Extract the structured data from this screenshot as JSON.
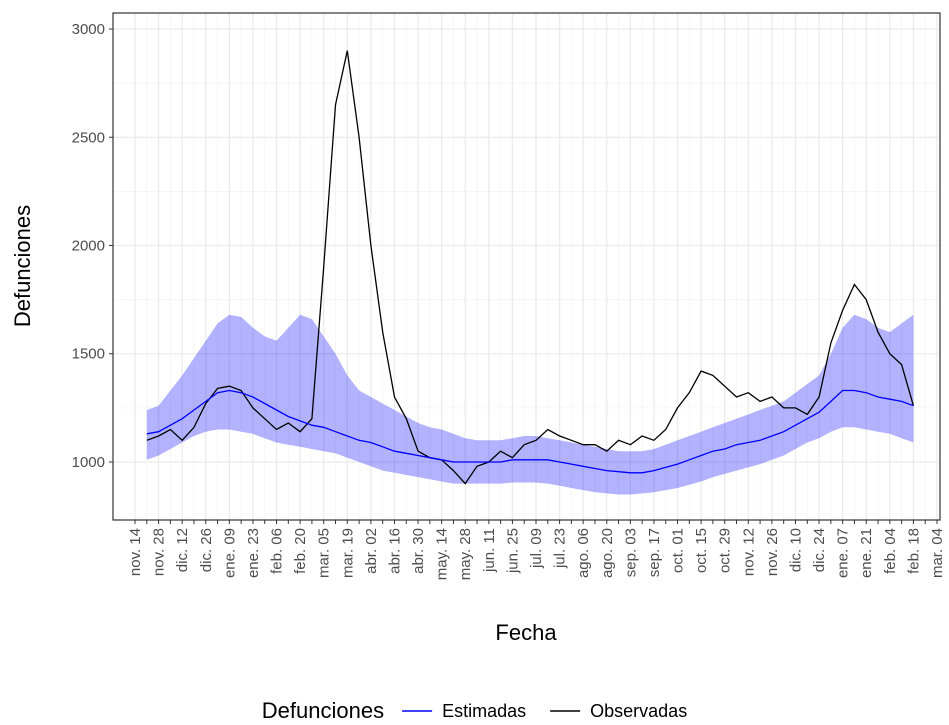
{
  "chart_data": {
    "type": "line",
    "x_label": "Fecha",
    "y_label": "Defunciones",
    "legend_title": "Defunciones",
    "legend_position": "bottom",
    "grid": true,
    "categories": [
      "nov. 14",
      null,
      "nov. 28",
      null,
      "dic. 12",
      null,
      "dic. 26",
      null,
      "ene. 09",
      null,
      "ene. 23",
      null,
      "feb. 06",
      null,
      "feb. 20",
      null,
      "mar. 05",
      null,
      "mar. 19",
      null,
      "abr. 02",
      null,
      "abr. 16",
      null,
      "abr. 30",
      null,
      "may. 14",
      null,
      "may. 28",
      null,
      "jun. 11",
      null,
      "jun. 25",
      null,
      "jul. 09",
      null,
      "jul. 23",
      null,
      "ago. 06",
      null,
      "ago. 20",
      null,
      "sep. 03",
      null,
      "sep. 17",
      null,
      "oct. 01",
      null,
      "oct. 15",
      null,
      "oct. 29",
      null,
      "nov. 12",
      null,
      "nov. 26",
      null,
      "dic. 10",
      null,
      "dic. 24",
      null,
      "ene. 07",
      null,
      "ene. 21",
      null,
      "feb. 04",
      null,
      "feb. 18",
      null,
      "mar. 04"
    ],
    "ylim": [
      732,
      3074
    ],
    "yticks": [
      1000,
      1500,
      2000,
      2500,
      3000
    ],
    "series": [
      {
        "name": "Estimadas",
        "color": "#0000ff",
        "values": [
          null,
          1130,
          1140,
          1170,
          1200,
          1240,
          1280,
          1320,
          1330,
          1320,
          1300,
          1270,
          1240,
          1210,
          1190,
          1170,
          1160,
          1140,
          1120,
          1100,
          1090,
          1070,
          1050,
          1040,
          1030,
          1020,
          1010,
          1000,
          1000,
          1000,
          1000,
          1000,
          1010,
          1010,
          1010,
          1010,
          1000,
          990,
          980,
          970,
          960,
          955,
          950,
          950,
          960,
          975,
          990,
          1010,
          1030,
          1050,
          1060,
          1080,
          1090,
          1100,
          1120,
          1140,
          1170,
          1200,
          1230,
          1280,
          1330,
          1330,
          1320,
          1300,
          1290,
          1280,
          1260,
          null,
          null
        ],
        "upper": [
          null,
          1240,
          1260,
          1330,
          1400,
          1480,
          1560,
          1640,
          1680,
          1670,
          1620,
          1580,
          1560,
          1620,
          1680,
          1660,
          1580,
          1500,
          1400,
          1330,
          1300,
          1270,
          1240,
          1210,
          1180,
          1160,
          1150,
          1130,
          1110,
          1100,
          1100,
          1100,
          1110,
          1120,
          1120,
          1110,
          1100,
          1090,
          1080,
          1070,
          1060,
          1050,
          1050,
          1050,
          1060,
          1080,
          1100,
          1120,
          1140,
          1160,
          1180,
          1200,
          1220,
          1240,
          1260,
          1280,
          1320,
          1360,
          1400,
          1500,
          1620,
          1680,
          1660,
          1620,
          1600,
          1640,
          1680,
          null,
          null
        ],
        "lower": [
          null,
          1010,
          1030,
          1060,
          1090,
          1120,
          1140,
          1150,
          1150,
          1140,
          1130,
          1110,
          1090,
          1080,
          1070,
          1060,
          1050,
          1040,
          1020,
          1000,
          980,
          960,
          950,
          940,
          930,
          920,
          910,
          900,
          900,
          900,
          900,
          900,
          905,
          905,
          905,
          900,
          890,
          880,
          870,
          860,
          855,
          850,
          850,
          855,
          860,
          870,
          880,
          895,
          910,
          930,
          945,
          960,
          975,
          990,
          1010,
          1030,
          1060,
          1090,
          1110,
          1140,
          1160,
          1160,
          1150,
          1140,
          1130,
          1110,
          1090,
          null,
          null
        ]
      },
      {
        "name": "Observadas",
        "color": "#000000",
        "values": [
          null,
          1100,
          1120,
          1150,
          1100,
          1160,
          1270,
          1340,
          1350,
          1330,
          1250,
          1200,
          1150,
          1180,
          1140,
          1200,
          1900,
          2650,
          2900,
          2500,
          2000,
          1600,
          1300,
          1200,
          1050,
          1020,
          1010,
          960,
          900,
          980,
          1000,
          1050,
          1020,
          1080,
          1100,
          1150,
          1120,
          1100,
          1080,
          1080,
          1050,
          1100,
          1080,
          1120,
          1100,
          1150,
          1250,
          1320,
          1420,
          1400,
          1350,
          1300,
          1320,
          1280,
          1300,
          1250,
          1250,
          1220,
          1300,
          1550,
          1700,
          1820,
          1750,
          1600,
          1500,
          1450,
          1260,
          null,
          null
        ]
      }
    ]
  }
}
